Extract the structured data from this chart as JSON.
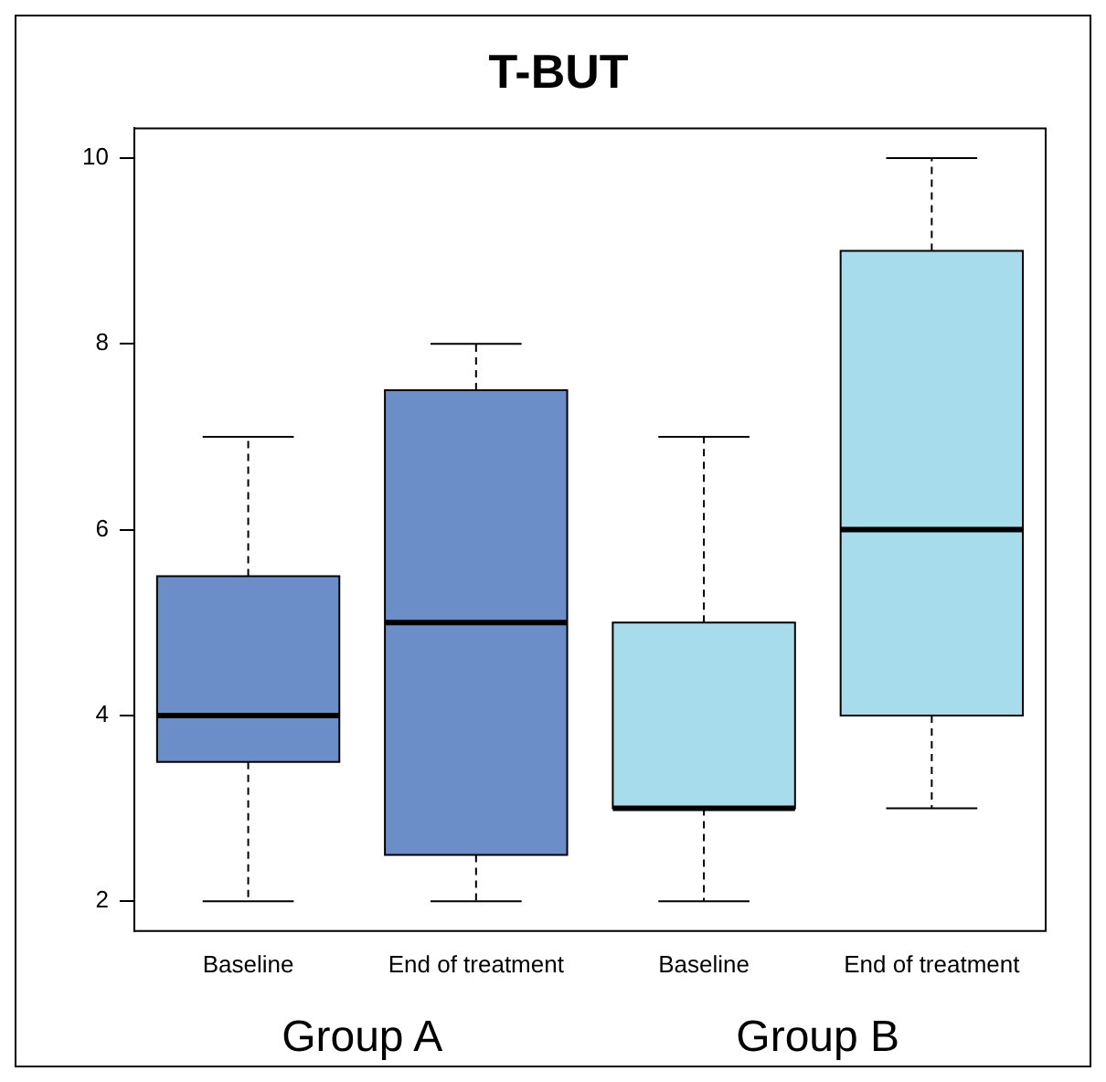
{
  "chart_data": {
    "type": "box",
    "title": "T-BUT",
    "categories": [
      "Baseline",
      "End of treatment",
      "Baseline",
      "End of treatment"
    ],
    "boxes": [
      {
        "low": 2,
        "q1": 3.5,
        "median": 4,
        "q3": 5.5,
        "high": 7
      },
      {
        "low": 2,
        "q1": 2.5,
        "median": 5,
        "q3": 7.5,
        "high": 8
      },
      {
        "low": 2,
        "q1": 3,
        "median": 3,
        "q3": 5,
        "high": 7
      },
      {
        "low": 3,
        "q1": 4,
        "median": 6,
        "q3": 9,
        "high": 10
      }
    ],
    "colors": [
      "#6b8ec8",
      "#6b8ec8",
      "#a6dcec",
      "#a6dcec"
    ],
    "ylim": [
      1.68,
      10.32
    ],
    "yticks": [
      2,
      4,
      6,
      8,
      10
    ],
    "annotations": [
      "Group A",
      "Group B"
    ]
  }
}
